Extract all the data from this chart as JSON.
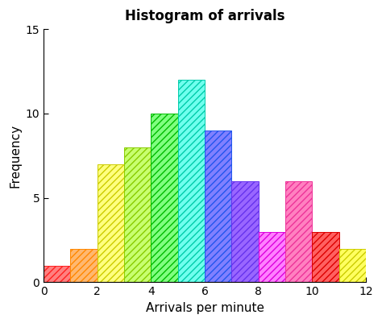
{
  "title": "Histogram of arrivals",
  "xlabel": "Arrivals per minute",
  "ylabel": "Frequency",
  "xlim": [
    0,
    12
  ],
  "ylim": [
    0,
    15
  ],
  "xticks": [
    0,
    2,
    4,
    6,
    8,
    10,
    12
  ],
  "yticks": [
    0,
    5,
    10,
    15
  ],
  "bins_left": [
    0,
    1,
    2,
    3,
    4,
    5,
    6,
    7,
    8,
    9,
    10,
    11
  ],
  "bins_height": [
    1,
    2,
    7,
    8,
    10,
    12,
    9,
    6,
    3,
    6,
    3,
    2
  ],
  "facecolors": [
    "#FF8080",
    "#FFB870",
    "#FFFF80",
    "#C8FF70",
    "#80FF80",
    "#70FFEE",
    "#8080FF",
    "#9966FF",
    "#FF80FF",
    "#FF80C0",
    "#FF6060",
    "#FFFF60"
  ],
  "edgecolors": [
    "#FF2020",
    "#FF8800",
    "#CCCC00",
    "#88CC00",
    "#00BB00",
    "#00CCAA",
    "#2255EE",
    "#6633EE",
    "#DD00DD",
    "#EE3399",
    "#DD0000",
    "#CCCC00"
  ],
  "hatch": "////",
  "background_color": "#FFFFFF",
  "title_fontsize": 12,
  "label_fontsize": 11,
  "tick_fontsize": 10
}
